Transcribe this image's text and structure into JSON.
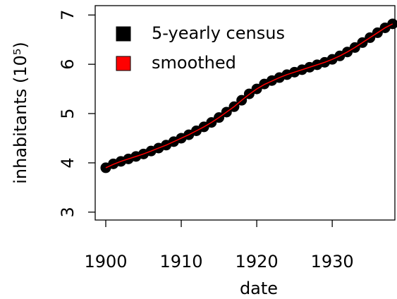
{
  "chart_data": {
    "type": "scatter-line",
    "xlabel": "date",
    "ylabel": "inhabitants (10⁵)",
    "x": [
      1900,
      1901,
      1902,
      1903,
      1904,
      1905,
      1906,
      1907,
      1908,
      1909,
      1910,
      1911,
      1912,
      1913,
      1914,
      1915,
      1916,
      1917,
      1918,
      1919,
      1920,
      1921,
      1922,
      1923,
      1924,
      1925,
      1926,
      1927,
      1928,
      1929,
      1930,
      1931,
      1932,
      1933,
      1934,
      1935,
      1936,
      1937,
      1938
    ],
    "series": [
      {
        "name": "5-yearly census",
        "color": "#000000",
        "values": [
          3.9,
          3.98,
          4.03,
          4.08,
          4.13,
          4.18,
          4.24,
          4.3,
          4.36,
          4.43,
          4.5,
          4.57,
          4.65,
          4.73,
          4.82,
          4.92,
          5.03,
          5.14,
          5.27,
          5.4,
          5.5,
          5.6,
          5.67,
          5.73,
          5.79,
          5.84,
          5.89,
          5.94,
          5.99,
          6.04,
          6.1,
          6.17,
          6.25,
          6.34,
          6.44,
          6.54,
          6.64,
          6.74,
          6.82
        ]
      },
      {
        "name": "smoothed",
        "color": "#ff0000",
        "values": [
          3.9,
          3.97,
          4.03,
          4.08,
          4.13,
          4.18,
          4.24,
          4.3,
          4.36,
          4.43,
          4.5,
          4.57,
          4.65,
          4.73,
          4.82,
          4.92,
          5.03,
          5.14,
          5.27,
          5.39,
          5.5,
          5.59,
          5.66,
          5.73,
          5.79,
          5.84,
          5.89,
          5.94,
          5.99,
          6.04,
          6.1,
          6.17,
          6.25,
          6.34,
          6.44,
          6.54,
          6.64,
          6.74,
          6.82
        ]
      }
    ],
    "xlim": [
      1898.6,
      1938.3
    ],
    "xticks": [
      1900,
      1910,
      1920,
      1930
    ],
    "ylim": [
      2.84,
      7.19
    ],
    "yticks": [
      3,
      4,
      5,
      6,
      7
    ],
    "legend": "top-left"
  }
}
